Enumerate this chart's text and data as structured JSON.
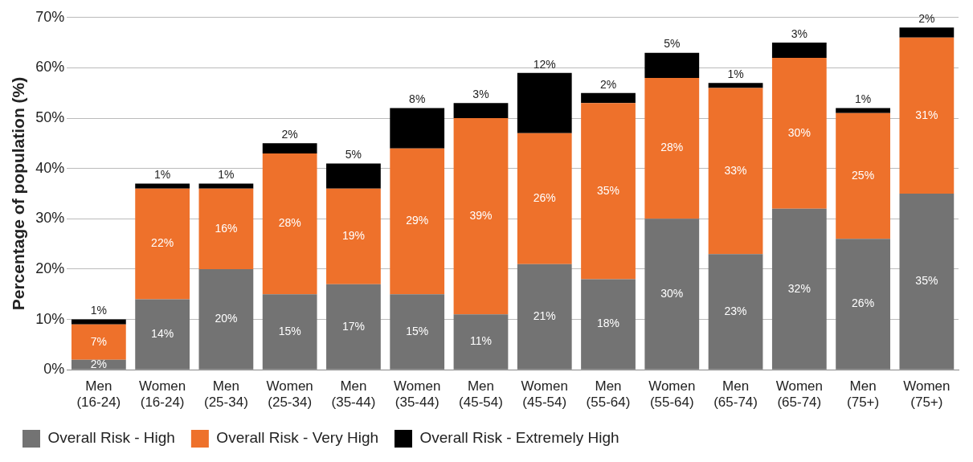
{
  "chart_data": {
    "type": "bar",
    "stacked": true,
    "ylabel": "Percentage of population (%)",
    "categories": [
      "Men\n(16-24)",
      "Women\n(16-24)",
      "Men\n(25-34)",
      "Women\n(25-34)",
      "Men\n(35-44)",
      "Women\n(35-44)",
      "Men\n(45-54)",
      "Women\n(45-54)",
      "Men\n(55-64)",
      "Women\n(55-64)",
      "Men\n(65-74)",
      "Women\n(65-74)",
      "Men\n(75+)",
      "Women\n(75+)"
    ],
    "series": [
      {
        "name": "Overall Risk - High",
        "color": "#737373",
        "values": [
          2,
          14,
          20,
          15,
          17,
          15,
          11,
          21,
          18,
          30,
          23,
          32,
          26,
          35
        ],
        "value_labels": [
          "2%",
          "14%",
          "20%",
          "15%",
          "17%",
          "15%",
          "11%",
          "21%",
          "18%",
          "30%",
          "23%",
          "32%",
          "26%",
          "35%"
        ]
      },
      {
        "name": "Overall Risk - Very High",
        "color": "#ee712b",
        "values": [
          7,
          22,
          16,
          28,
          19,
          29,
          39,
          26,
          35,
          28,
          33,
          30,
          25,
          31
        ],
        "value_labels": [
          "7%",
          "22%",
          "16%",
          "28%",
          "19%",
          "29%",
          "39%",
          "26%",
          "35%",
          "28%",
          "33%",
          "30%",
          "25%",
          "31%"
        ]
      },
      {
        "name": "Overall Risk - Extremely High",
        "color": "#000000",
        "values": [
          1,
          1,
          1,
          2,
          5,
          8,
          3,
          12,
          2,
          5,
          1,
          3,
          1,
          2
        ],
        "value_labels": [
          "1%",
          "1%",
          "1%",
          "2%",
          "5%",
          "8%",
          "3%",
          "12%",
          "2%",
          "5%",
          "1%",
          "3%",
          "1%",
          "2%"
        ]
      }
    ],
    "ylim": [
      0,
      70
    ],
    "yticks": [
      {
        "value": 0,
        "label": "0%"
      },
      {
        "value": 10,
        "label": "10%"
      },
      {
        "value": 20,
        "label": "20%"
      },
      {
        "value": 30,
        "label": "30%"
      },
      {
        "value": 40,
        "label": "40%"
      },
      {
        "value": 50,
        "label": "50%"
      },
      {
        "value": 60,
        "label": "60%"
      },
      {
        "value": 70,
        "label": "70%"
      }
    ],
    "grid": "y",
    "legend": "bottom left"
  }
}
